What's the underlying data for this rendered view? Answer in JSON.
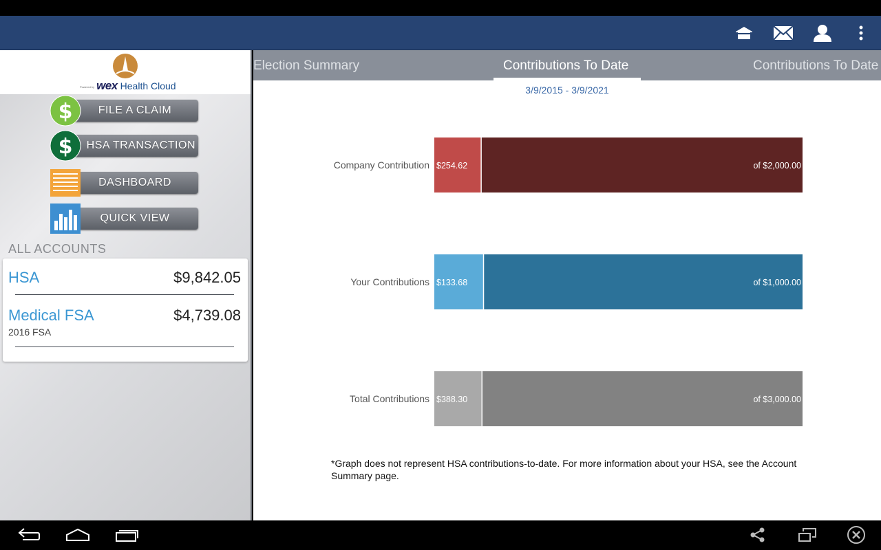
{
  "header": {
    "icons": [
      "home-icon",
      "mail-icon",
      "profile-icon",
      "overflow-menu-icon"
    ]
  },
  "logo": {
    "powered_by": "Powered by",
    "brand": "wex",
    "product": "Health Cloud"
  },
  "sidebar": {
    "menu": [
      {
        "label": "FILE A CLAIM",
        "icon": "dollar-icon",
        "color": "#7cc242"
      },
      {
        "label": "HSA TRANSACTION",
        "icon": "dollar-icon",
        "color": "#0f7a3e"
      },
      {
        "label": "DASHBOARD",
        "icon": "dashboard-icon",
        "color": "#f3a43a"
      },
      {
        "label": "QUICK VIEW",
        "icon": "bar-chart-icon",
        "color": "#3d8fd1"
      }
    ],
    "accounts_header": "ALL ACCOUNTS",
    "accounts": [
      {
        "name": "HSA",
        "balance": "$9,842.05",
        "sub": ""
      },
      {
        "name": "Medical FSA",
        "balance": "$4,739.08",
        "sub": "2016 FSA"
      }
    ]
  },
  "tabs": [
    {
      "label": "Election Summary",
      "active": false
    },
    {
      "label": "Contributions To Date",
      "active": true
    },
    {
      "label": "Contributions To Date",
      "active": false
    }
  ],
  "date_range": "3/9/2015 - 3/9/2021",
  "chart_data": {
    "type": "bar",
    "orientation": "horizontal",
    "categories": [
      "Company Contribution",
      "Your Contributions",
      "Total Contributions"
    ],
    "series": [
      {
        "values": [
          254.62,
          133.68,
          388.3
        ],
        "labels": [
          "$254.62",
          "$133.68",
          "$388.30"
        ],
        "colors": [
          "#c04b49",
          "#5aabd8",
          "#a9a9a9"
        ]
      },
      {
        "values": [
          2000.0,
          1000.0,
          3000.0
        ],
        "labels": [
          "of $2,000.00",
          "of $1,000.00",
          "of $3,000.00"
        ],
        "colors": [
          "#5e2423",
          "#2c7299",
          "#828282"
        ]
      }
    ]
  },
  "footnote": "*Graph does not represent HSA contributions-to-date. For more information about your HSA, see the Account Summary page.",
  "nav": {
    "icons": [
      "back-icon",
      "home-icon",
      "recents-icon",
      "share-icon",
      "window-icon",
      "close-icon"
    ]
  }
}
